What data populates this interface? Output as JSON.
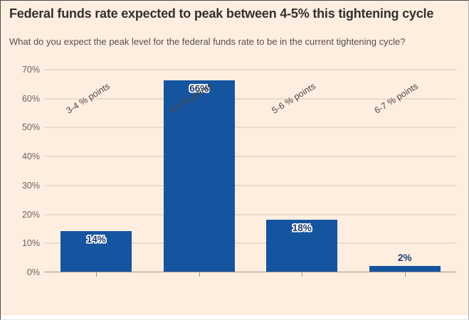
{
  "header": {
    "title": "Federal funds rate expected to peak between 4-5% this tightening cycle",
    "subtitle": "What do you expect the peak level for the federal funds rate to be in the current tightening cycle?"
  },
  "colors": {
    "background": "#fdeee0",
    "bar": "#15549e",
    "bar_label": "#1d3c6e",
    "title_text": "#33302e",
    "subtitle_text": "#57504a",
    "axis_text": "#6b635c",
    "xaxis_text": "#4d4742",
    "gridline": "#e9dac9",
    "axis_line": "#9d9287"
  },
  "chart_data": {
    "type": "bar",
    "title": "Federal funds rate expected to peak between 4-5% this tightening cycle",
    "subtitle": "What do you expect the peak level for the federal funds rate to be in the current tightening cycle?",
    "categories": [
      "3-4 % points",
      "4-5 % points",
      "5-6 % points",
      "6-7 % points"
    ],
    "values": [
      14,
      66,
      18,
      2
    ],
    "bar_labels": [
      "14%",
      "66%",
      "18%",
      "2%"
    ],
    "y_tick_values": [
      0,
      10,
      20,
      30,
      40,
      50,
      60,
      70
    ],
    "y_tick_labels": [
      "0%",
      "10%",
      "20%",
      "30%",
      "40%",
      "50%",
      "60%",
      "70%"
    ],
    "ylim": [
      0,
      70
    ],
    "grid": true,
    "legend": "none",
    "xlabel": "",
    "ylabel": ""
  }
}
